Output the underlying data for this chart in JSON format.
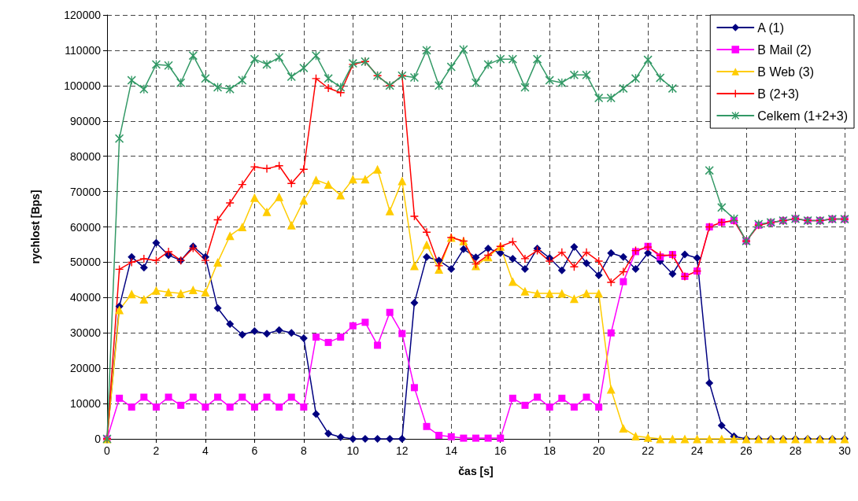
{
  "chart_data": {
    "type": "line",
    "xlabel": "čas [s]",
    "ylabel": "rychlost [Bps]",
    "x": [
      0,
      0.5,
      1,
      1.5,
      2,
      2.5,
      3,
      3.5,
      4,
      4.5,
      5,
      5.5,
      6,
      6.5,
      7,
      7.5,
      8,
      8.5,
      9,
      9.5,
      10,
      10.5,
      11,
      11.5,
      12,
      12.5,
      13,
      13.5,
      14,
      14.5,
      15,
      15.5,
      16,
      16.5,
      17,
      17.5,
      18,
      18.5,
      19,
      19.5,
      20,
      20.5,
      21,
      21.5,
      22,
      22.5,
      23,
      23.5,
      24,
      24.5,
      25,
      25.5,
      26,
      26.5,
      27,
      27.5,
      28,
      28.5,
      29,
      29.5,
      30
    ],
    "xlim": [
      0,
      30
    ],
    "xticks": [
      0,
      2,
      4,
      6,
      8,
      10,
      12,
      14,
      16,
      18,
      20,
      22,
      24,
      26,
      28,
      30
    ],
    "ylim": [
      0,
      120000
    ],
    "yticks": [
      0,
      10000,
      20000,
      30000,
      40000,
      50000,
      60000,
      70000,
      80000,
      90000,
      100000,
      110000,
      120000
    ],
    "grid": true,
    "legend": "top right",
    "line_style": "solid",
    "series": [
      {
        "name": "A (1)",
        "color": "#000080",
        "marker": "diamond",
        "values": [
          0,
          37500,
          51500,
          48500,
          55500,
          52000,
          50500,
          54500,
          51500,
          37000,
          32500,
          29500,
          30500,
          29800,
          30800,
          30000,
          28500,
          7000,
          1500,
          500,
          0,
          0,
          0,
          0,
          0,
          38500,
          51500,
          50500,
          48100,
          53700,
          51400,
          53900,
          52600,
          51000,
          48100,
          53900,
          51200,
          47700,
          54300,
          49700,
          46300,
          52600,
          51500,
          48100,
          52600,
          50300,
          46700,
          52200,
          51200,
          15800,
          3800,
          700,
          0,
          0,
          0,
          0,
          0,
          0,
          0,
          0,
          0
        ]
      },
      {
        "name": "B Mail (2)",
        "color": "#ff00ff",
        "marker": "square",
        "values": [
          0,
          11500,
          9000,
          11800,
          9000,
          11800,
          9500,
          11800,
          9000,
          11800,
          9000,
          11800,
          9000,
          11800,
          9000,
          11800,
          9000,
          28800,
          27300,
          28800,
          32000,
          33000,
          26500,
          35800,
          29800,
          14500,
          3500,
          1000,
          600,
          200,
          200,
          200,
          200,
          11500,
          9500,
          11800,
          9000,
          11500,
          9000,
          11800,
          9000,
          30000,
          44500,
          53000,
          54500,
          51500,
          52200,
          46000,
          47500,
          60000,
          61300,
          61800,
          56000,
          60500,
          61200,
          61800,
          62300,
          61800,
          61800,
          62200,
          62200
        ]
      },
      {
        "name": "B Web (3)",
        "color": "#ffcc00",
        "marker": "triangle",
        "values": [
          0,
          36500,
          41000,
          39500,
          42000,
          41500,
          41200,
          42200,
          41500,
          50000,
          57500,
          60000,
          68300,
          64300,
          68500,
          60500,
          67500,
          73300,
          72000,
          69000,
          73500,
          73500,
          76300,
          64500,
          73000,
          49000,
          55000,
          48000,
          57000,
          56000,
          49000,
          51500,
          54500,
          44500,
          41800,
          41200,
          41200,
          41200,
          39700,
          41200,
          41200,
          14000,
          3000,
          800,
          400,
          0,
          0,
          0,
          0,
          0,
          0,
          0,
          0,
          0,
          0,
          0,
          0,
          0,
          0,
          0,
          0
        ]
      },
      {
        "name": "B (2+3)",
        "color": "#ff0000",
        "marker": "cross",
        "values": [
          0,
          48000,
          50000,
          51000,
          50500,
          53000,
          50500,
          54000,
          50500,
          62000,
          66800,
          72000,
          77000,
          76500,
          77300,
          72300,
          76300,
          102000,
          99300,
          98000,
          106000,
          106800,
          102800,
          100000,
          102800,
          63000,
          58500,
          49000,
          57000,
          56000,
          49500,
          52000,
          54500,
          55800,
          51000,
          53300,
          50300,
          52800,
          48700,
          52800,
          50300,
          44300,
          47300,
          53300,
          54300,
          52000,
          52000,
          46000,
          47500,
          60000,
          61300,
          61800,
          56000,
          60500,
          61200,
          61800,
          62300,
          61800,
          61800,
          62200,
          62200
        ]
      },
      {
        "name": "Celkem (1+2+3)",
        "color": "#339966",
        "marker": "star",
        "values": [
          0,
          85000,
          101500,
          99000,
          106000,
          105700,
          100800,
          108500,
          102000,
          99500,
          99000,
          101500,
          107500,
          106000,
          108000,
          102500,
          105000,
          108500,
          102000,
          99500,
          106300,
          106800,
          102800,
          100000,
          102800,
          102300,
          110000,
          100000,
          105300,
          110200,
          100800,
          106000,
          107500,
          107500,
          99500,
          107500,
          101500,
          100800,
          103000,
          103000,
          96500,
          96500,
          99200,
          102000,
          107300,
          102200,
          99200,
          null,
          null,
          76000,
          65500,
          62300,
          56000,
          60800,
          61300,
          61800,
          62300,
          61800,
          61800,
          62200,
          62200
        ]
      }
    ]
  }
}
